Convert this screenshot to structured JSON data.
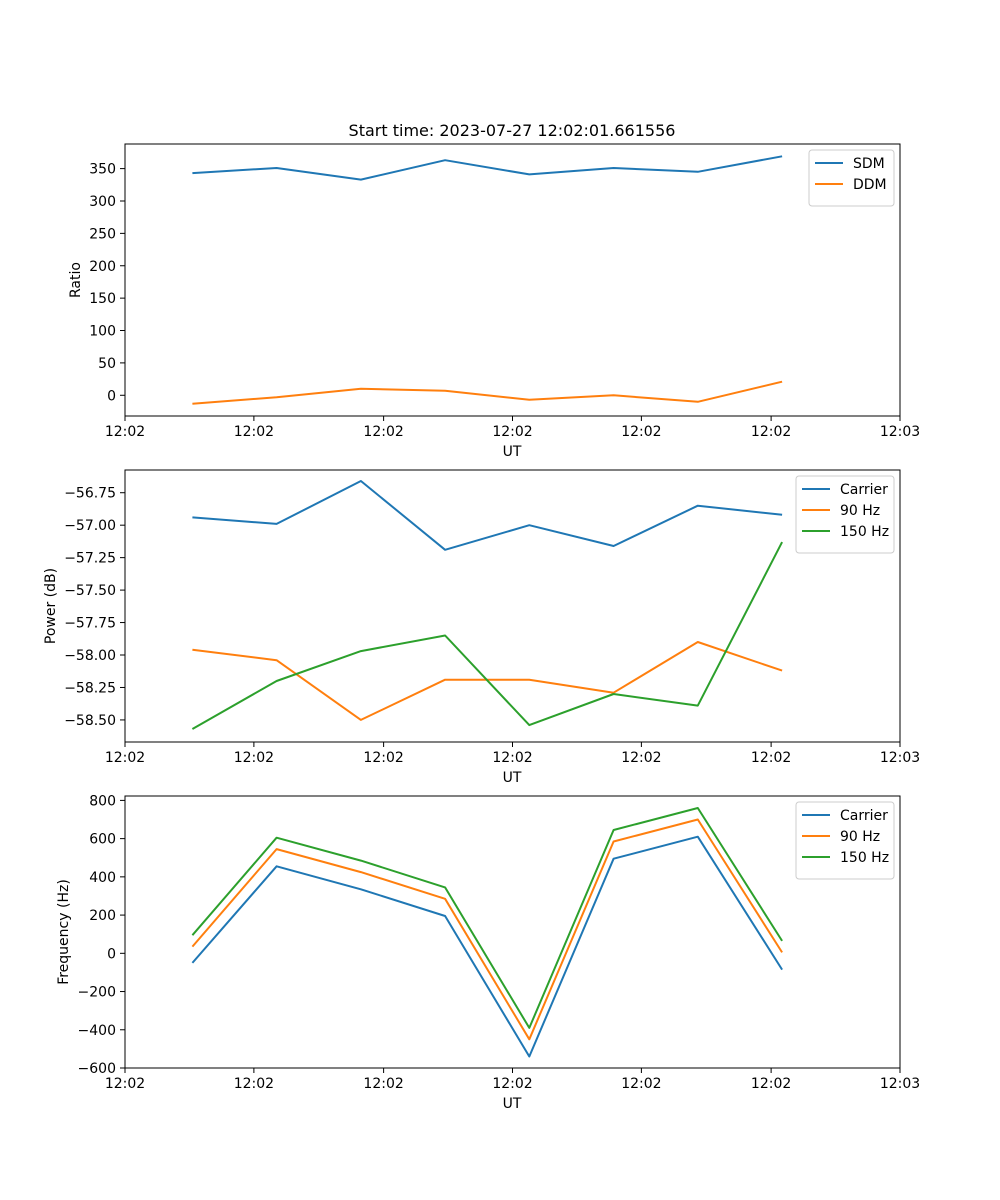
{
  "figure": {
    "title": "Start time: 2023-07-27 12:02:01.661556"
  },
  "chart_data": [
    {
      "type": "line",
      "title": "Start time: 2023-07-27 12:02:01.661556",
      "xlabel": "UT",
      "ylabel": "Ratio",
      "x_tick_labels": [
        "12:02",
        "12:02",
        "12:02",
        "12:02",
        "12:02",
        "12:02",
        "12:03"
      ],
      "ylim": [
        -32,
        388
      ],
      "y_ticks": [
        0,
        50,
        100,
        150,
        200,
        250,
        300,
        350
      ],
      "y_tick_labels": [
        "0",
        "50",
        "100",
        "150",
        "200",
        "250",
        "300",
        "350"
      ],
      "legend_position": "top-right",
      "x": [
        1,
        2,
        3,
        4,
        5,
        6,
        7,
        8
      ],
      "series": [
        {
          "name": "SDM",
          "color": "#1f77b4",
          "values": [
            343,
            351,
            333,
            363,
            341,
            351,
            345,
            369
          ]
        },
        {
          "name": "DDM",
          "color": "#ff7f0e",
          "values": [
            -13,
            -3,
            10,
            7,
            -7,
            0,
            -10,
            21
          ]
        }
      ]
    },
    {
      "type": "line",
      "title": "",
      "xlabel": "UT",
      "ylabel": "Power (dB)",
      "x_tick_labels": [
        "12:02",
        "12:02",
        "12:02",
        "12:02",
        "12:02",
        "12:02",
        "12:03"
      ],
      "ylim": [
        -58.67,
        -56.575
      ],
      "y_ticks": [
        -58.5,
        -58.25,
        -58.0,
        -57.75,
        -57.5,
        -57.25,
        -57.0,
        -56.75
      ],
      "y_tick_labels": [
        "−58.50",
        "−58.25",
        "−58.00",
        "−57.75",
        "−57.50",
        "−57.25",
        "−57.00",
        "−56.75"
      ],
      "legend_position": "top-right",
      "x": [
        1,
        2,
        3,
        4,
        5,
        6,
        7,
        8
      ],
      "series": [
        {
          "name": "Carrier",
          "color": "#1f77b4",
          "values": [
            -56.94,
            -56.99,
            -56.66,
            -57.19,
            -57.0,
            -57.16,
            -56.85,
            -56.92
          ]
        },
        {
          "name": "90 Hz",
          "color": "#ff7f0e",
          "values": [
            -57.96,
            -58.04,
            -58.5,
            -58.19,
            -58.19,
            -58.29,
            -57.9,
            -58.12
          ]
        },
        {
          "name": "150 Hz",
          "color": "#2ca02c",
          "values": [
            -58.57,
            -58.2,
            -57.97,
            -57.85,
            -58.54,
            -58.3,
            -58.39,
            -57.13
          ]
        }
      ]
    },
    {
      "type": "line",
      "title": "",
      "xlabel": "UT",
      "ylabel": "Frequency (Hz)",
      "x_tick_labels": [
        "12:02",
        "12:02",
        "12:02",
        "12:02",
        "12:02",
        "12:02",
        "12:03"
      ],
      "ylim": [
        -600,
        823
      ],
      "y_ticks": [
        -600,
        -400,
        -200,
        0,
        200,
        400,
        600,
        800
      ],
      "y_tick_labels": [
        "−600",
        "−400",
        "−200",
        "0",
        "200",
        "400",
        "600",
        "800"
      ],
      "legend_position": "top-right",
      "x": [
        1,
        2,
        3,
        4,
        5,
        6,
        7,
        8
      ],
      "series": [
        {
          "name": "Carrier",
          "color": "#1f77b4",
          "values": [
            -50,
            455,
            335,
            195,
            -540,
            495,
            610,
            -85
          ]
        },
        {
          "name": "90 Hz",
          "color": "#ff7f0e",
          "values": [
            35,
            545,
            425,
            285,
            -450,
            585,
            700,
            5
          ]
        },
        {
          "name": "150 Hz",
          "color": "#2ca02c",
          "values": [
            95,
            605,
            485,
            345,
            -390,
            645,
            760,
            65
          ]
        }
      ]
    }
  ]
}
